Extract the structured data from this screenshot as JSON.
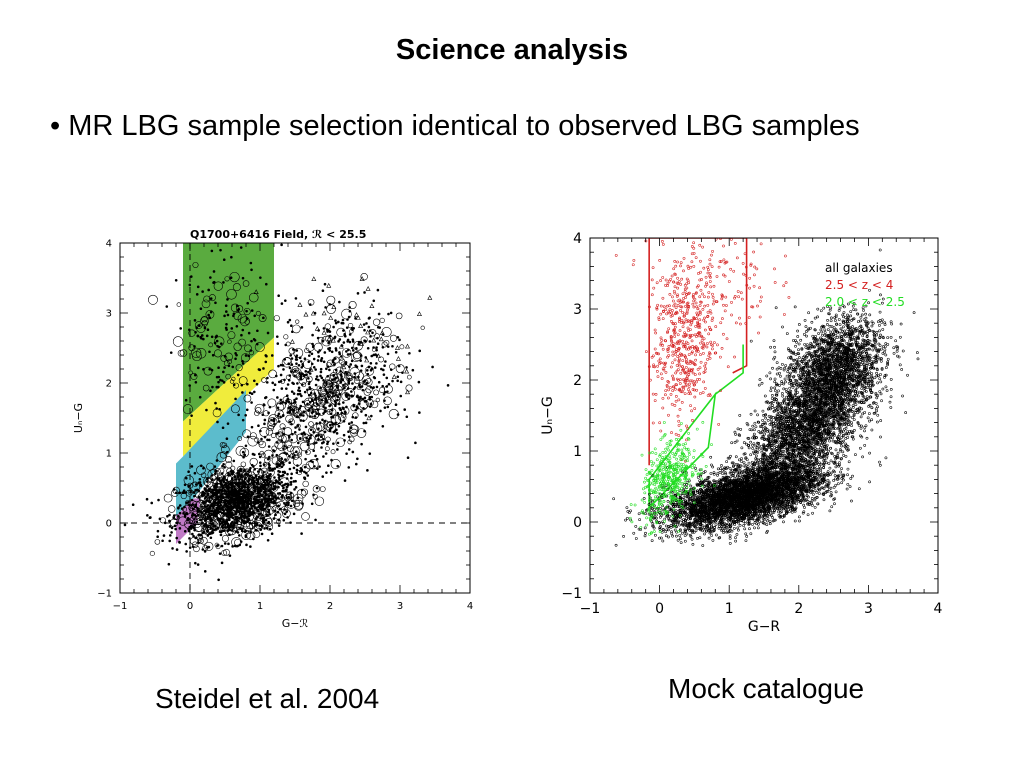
{
  "slide": {
    "title": "Science analysis",
    "bullet_marker": "•",
    "bullet_text": "MR LBG sample selection identical to observed LBG samples",
    "caption_left": "Steidel et al. 2004",
    "caption_right": "Mock catalogue"
  },
  "colors": {
    "lbg_box": "#5aab3f",
    "bx_box": "#f0ec3c",
    "bm_box": "#5cbccc",
    "low_z_box": "#c07ac6",
    "red_sample": "#d42020",
    "green_sample": "#22dd22",
    "all_galaxies": "#000000"
  },
  "chart_data": [
    {
      "type": "scatter",
      "title": "Q1700+6416 Field, ℛ < 25.5",
      "xlabel": "G−ℛ",
      "ylabel": "Uₙ−G",
      "xlim": [
        -1,
        4
      ],
      "ylim": [
        -1,
        4
      ],
      "xticks": [
        -1,
        0,
        1,
        2,
        3,
        4
      ],
      "yticks": [
        -1,
        0,
        1,
        2,
        3,
        4
      ],
      "reference_lines": [
        {
          "orientation": "horizontal",
          "value": 0,
          "style": "dashed"
        },
        {
          "orientation": "vertical",
          "value": 0,
          "style": "dashed"
        }
      ],
      "selection_regions": [
        {
          "color_key": "lbg_box",
          "polygon": [
            [
              -0.1,
              4.0
            ],
            [
              1.2,
              4.0
            ],
            [
              1.2,
              2.65
            ],
            [
              -0.1,
              1.45
            ]
          ]
        },
        {
          "color_key": "bx_box",
          "polygon": [
            [
              -0.1,
              1.45
            ],
            [
              1.2,
              2.65
            ],
            [
              1.2,
              2.2
            ],
            [
              -0.1,
              0.95
            ]
          ]
        },
        {
          "color_key": "bm_box",
          "polygon": [
            [
              -0.2,
              0.85
            ],
            [
              -0.1,
              0.95
            ],
            [
              0.8,
              1.9
            ],
            [
              0.8,
              1.3
            ],
            [
              0.05,
              0.35
            ],
            [
              -0.2,
              0.1
            ]
          ]
        },
        {
          "color_key": "low_z_box",
          "polygon": [
            [
              -0.2,
              0.1
            ],
            [
              0.05,
              0.35
            ],
            [
              0.15,
              0.35
            ],
            [
              0.1,
              0.0
            ],
            [
              -0.2,
              -0.3
            ]
          ]
        }
      ],
      "series": [
        {
          "kind": "dense_cloud",
          "color_key": "all_galaxies",
          "approx_points": 2600,
          "components": [
            {
              "weight": 0.56,
              "center": [
                0.65,
                0.3
              ],
              "spread": [
                0.42,
                0.28
              ],
              "corr": 0.35
            },
            {
              "weight": 0.24,
              "center": [
                1.7,
                1.6
              ],
              "spread": [
                0.5,
                0.55
              ],
              "corr": 0.3
            },
            {
              "weight": 0.12,
              "center": [
                2.2,
                2.3
              ],
              "spread": [
                0.45,
                0.5
              ],
              "corr": 0.1
            },
            {
              "weight": 0.08,
              "center": [
                0.5,
                2.7
              ],
              "spread": [
                0.35,
                0.55
              ],
              "corr": 0.0
            }
          ]
        },
        {
          "kind": "sparse_triangles",
          "color_key": "all_galaxies",
          "approx_points": 40,
          "components": [
            {
              "weight": 1.0,
              "center": [
                2.3,
                2.7
              ],
              "spread": [
                0.6,
                0.5
              ],
              "corr": 0.0
            }
          ]
        }
      ]
    },
    {
      "type": "scatter",
      "title": "",
      "xlabel": "G−R",
      "ylabel": "Uₙ−G",
      "xlim": [
        -1,
        4
      ],
      "ylim": [
        -1,
        4
      ],
      "xticks": [
        -1,
        0,
        1,
        2,
        3,
        4
      ],
      "yticks": [
        -1,
        0,
        1,
        2,
        3,
        4
      ],
      "legend": {
        "position": "top-right",
        "entries": [
          {
            "label": "all galaxies",
            "color_key": "all_galaxies"
          },
          {
            "label": "2.5 < z < 4",
            "color_key": "red_sample"
          },
          {
            "label": "2.0 < z < 2.5",
            "color_key": "green_sample"
          }
        ]
      },
      "selection_regions": [
        {
          "color_key": "red_sample",
          "outline_only": true,
          "polyline": [
            [
              -0.15,
              0.8
            ],
            [
              -0.15,
              4.0
            ],
            [
              1.25,
              4.0
            ],
            [
              1.25,
              2.2
            ],
            [
              1.05,
              2.1
            ]
          ]
        },
        {
          "color_key": "green_sample",
          "outline_only": true,
          "polyline": [
            [
              -0.15,
              0.6
            ],
            [
              0.8,
              1.8
            ],
            [
              0.7,
              1.05
            ],
            [
              0.0,
              0.35
            ],
            [
              -0.15,
              0.2
            ],
            [
              -0.15,
              0.6
            ]
          ]
        },
        {
          "color_key": "green_sample",
          "outline_only": true,
          "polyline": [
            [
              0.8,
              1.8
            ],
            [
              1.2,
              2.1
            ],
            [
              1.2,
              2.5
            ]
          ]
        }
      ],
      "series": [
        {
          "name": "all galaxies",
          "color_key": "all_galaxies",
          "approx_points": 9000,
          "components": [
            {
              "weight": 0.5,
              "center": [
                1.2,
                0.35
              ],
              "spread": [
                0.55,
                0.22
              ],
              "corr": 0.55
            },
            {
              "weight": 0.3,
              "center": [
                2.1,
                1.3
              ],
              "spread": [
                0.45,
                0.45
              ],
              "corr": 0.6
            },
            {
              "weight": 0.2,
              "center": [
                2.5,
                2.2
              ],
              "spread": [
                0.35,
                0.35
              ],
              "corr": 0.3
            }
          ]
        },
        {
          "name": "2.5 < z < 4",
          "color_key": "red_sample",
          "approx_points": 650,
          "components": [
            {
              "weight": 0.75,
              "center": [
                0.35,
                2.5
              ],
              "spread": [
                0.22,
                0.55
              ],
              "corr": 0.2
            },
            {
              "weight": 0.25,
              "center": [
                0.7,
                3.4
              ],
              "spread": [
                0.45,
                0.4
              ],
              "corr": 0.0
            }
          ]
        },
        {
          "name": "2.0 < z < 2.5",
          "color_key": "green_sample",
          "approx_points": 450,
          "components": [
            {
              "weight": 1.0,
              "center": [
                0.15,
                0.6
              ],
              "spread": [
                0.2,
                0.28
              ],
              "corr": 0.4
            }
          ]
        }
      ]
    }
  ]
}
